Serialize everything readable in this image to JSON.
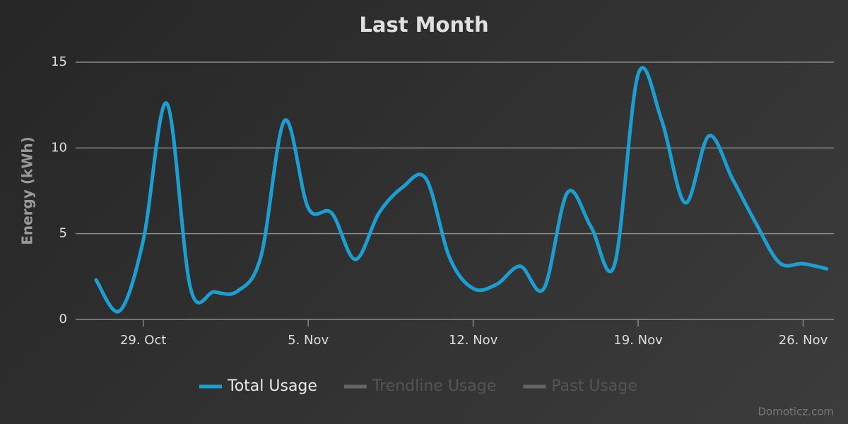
{
  "chart_data": {
    "type": "line",
    "title": "Last Month",
    "y_label": "Energy (kWh)",
    "credit": "Domoticz.com",
    "categories": [
      null,
      null,
      "29. Oct",
      null,
      null,
      null,
      null,
      null,
      null,
      "5. Nov",
      null,
      null,
      null,
      null,
      null,
      null,
      "12. Nov",
      null,
      null,
      null,
      null,
      null,
      null,
      "19. Nov",
      null,
      null,
      null,
      null,
      null,
      null,
      "26. Nov",
      null
    ],
    "series": [
      {
        "name": "Total Usage",
        "color": "#1a9fd0",
        "values": [
          2.3,
          0.5,
          4.6,
          12.6,
          1.85,
          1.6,
          1.65,
          3.7,
          11.6,
          6.5,
          6.2,
          3.5,
          6.2,
          7.7,
          8.2,
          3.6,
          1.8,
          2.05,
          3.1,
          1.8,
          7.4,
          5.4,
          3.2,
          14.3,
          11.6,
          6.8,
          10.7,
          8.2,
          5.6,
          3.3,
          3.25,
          2.95
        ]
      }
    ],
    "hidden_series": [
      {
        "name": "Trendline Usage",
        "color": "#666666"
      },
      {
        "name": "Past Usage",
        "color": "#666666"
      }
    ],
    "ylim": [
      0,
      15
    ],
    "yticks": [
      0,
      5,
      10,
      15
    ],
    "grid": true
  }
}
